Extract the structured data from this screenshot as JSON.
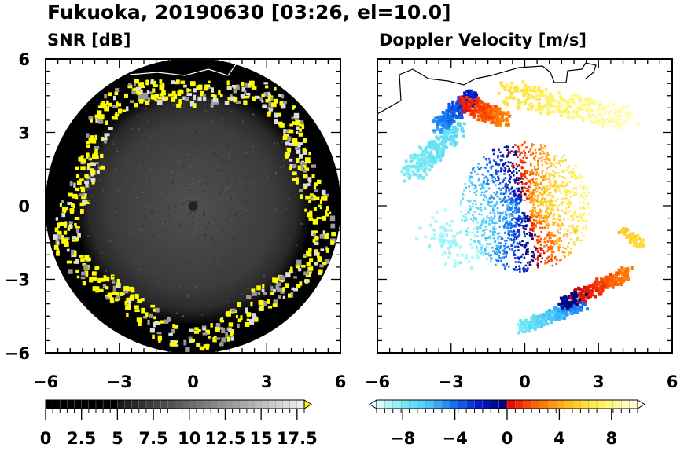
{
  "title": "Fukuoka, 20190630 [03:26, el=10.0]",
  "chart_data": [
    {
      "type": "heatmap",
      "title": "SNR [dB]",
      "xlim": [
        -6,
        6
      ],
      "ylim": [
        -6,
        6
      ],
      "xticks": [
        "-6",
        "-3",
        "0",
        "3",
        "6"
      ],
      "yticks": [
        "6",
        "3",
        "0",
        "-3",
        "-6"
      ],
      "colorbar": {
        "min": 0,
        "max": 18,
        "ticks": [
          "0",
          "2.5",
          "5",
          "7.5",
          "10",
          "12.5",
          "15",
          "17.5"
        ],
        "tick_values": [
          0,
          2.5,
          5,
          7.5,
          10,
          12.5,
          15,
          17.5
        ],
        "over_color": "#ffff00",
        "palette": "greyscale"
      }
    },
    {
      "type": "heatmap",
      "title": "Doppler Velocity [m/s]",
      "xlim": [
        -6,
        6
      ],
      "ylim": [
        -6,
        6
      ],
      "xticks": [
        "-6",
        "-3",
        "0",
        "3",
        "6"
      ],
      "colorbar": {
        "min": -10,
        "max": 10,
        "ticks": [
          "−8",
          "−4",
          "0",
          "4",
          "8"
        ],
        "tick_values": [
          -8,
          -4,
          0,
          4,
          8
        ],
        "palette": "blue-red-yellow"
      }
    }
  ]
}
